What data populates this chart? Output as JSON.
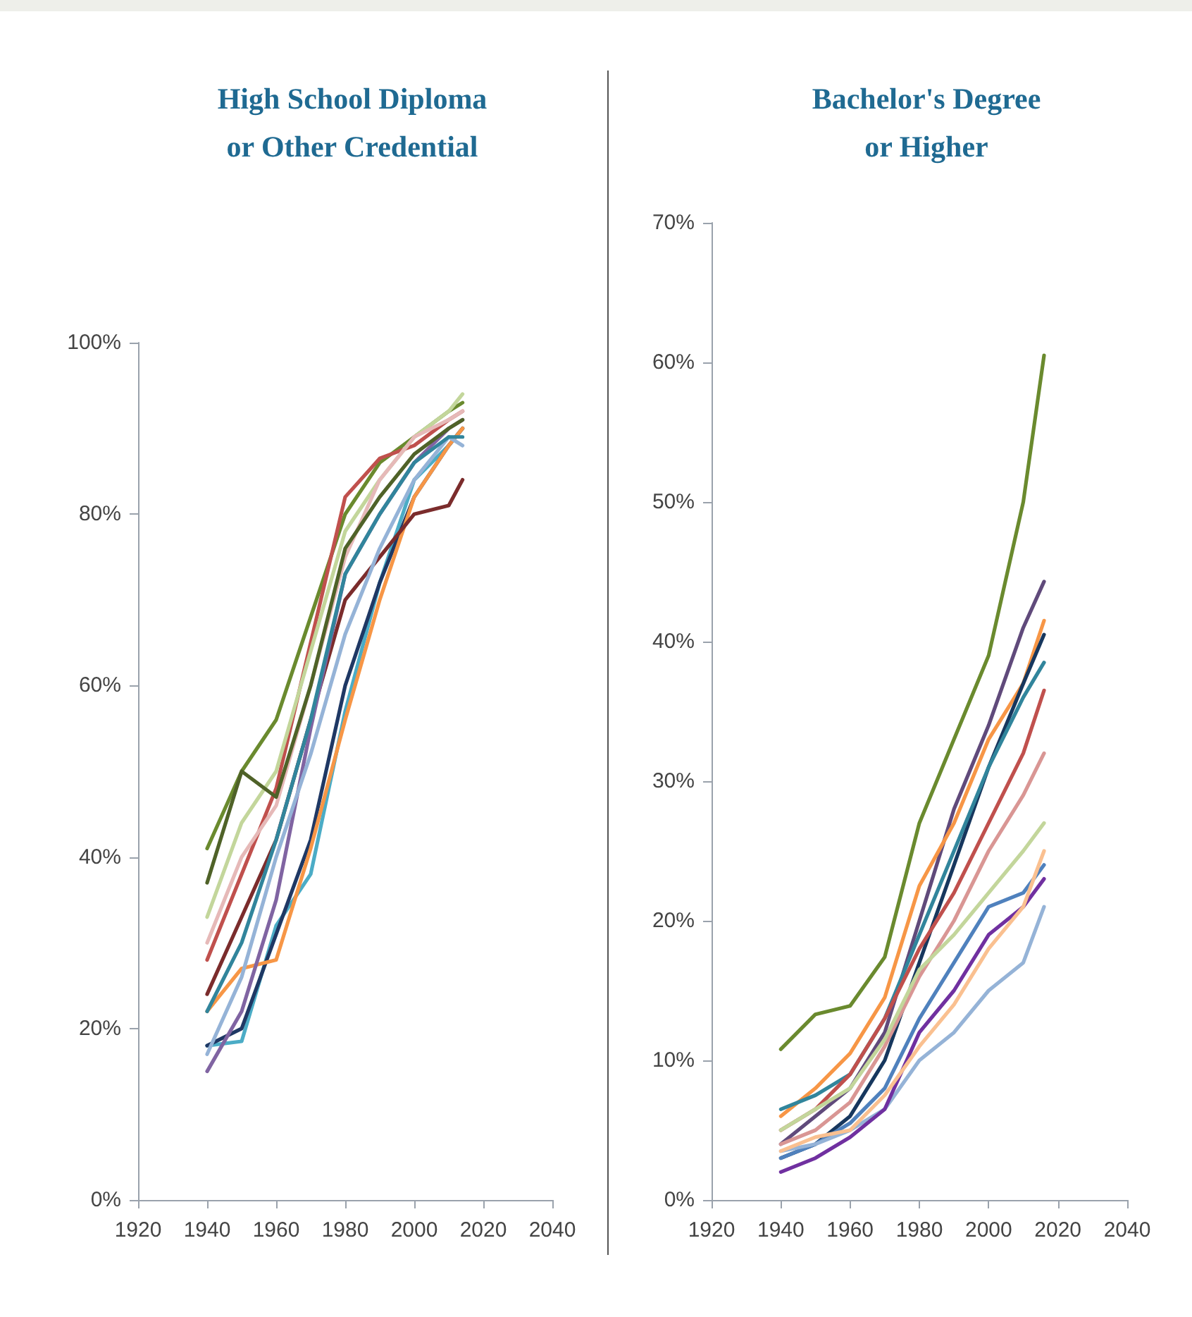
{
  "chart_data": [
    {
      "type": "line",
      "title": "High School Diploma\nor Other Credential",
      "x": [
        1940,
        1950,
        1960,
        1970,
        1980,
        1990,
        2000,
        2010,
        2014
      ],
      "series": [
        {
          "color": "#6a8a2e",
          "values": [
            41,
            50,
            56,
            68,
            80,
            86,
            89,
            92,
            93
          ]
        },
        {
          "color": "#c0504d",
          "values": [
            28,
            38,
            48,
            65,
            82,
            86.5,
            88,
            91,
            92
          ]
        },
        {
          "color": "#4bacc6",
          "values": [
            18,
            18.5,
            32,
            38,
            57,
            72,
            84,
            88,
            90
          ]
        },
        {
          "color": "#1f3864",
          "values": [
            18,
            20,
            31,
            42,
            60,
            72,
            82,
            88,
            90
          ]
        },
        {
          "color": "#f79646",
          "values": [
            22,
            27,
            28,
            41,
            56,
            70,
            82,
            88,
            90
          ]
        },
        {
          "color": "#7b2c2c",
          "values": [
            24,
            33,
            42,
            56,
            70,
            75,
            80,
            81,
            84
          ]
        },
        {
          "color": "#8064a2",
          "values": [
            15,
            22,
            35,
            55,
            73,
            80,
            86,
            90,
            91
          ]
        },
        {
          "color": "#c3d69b",
          "values": [
            33,
            44,
            50,
            64,
            78,
            84,
            89,
            92,
            94
          ]
        },
        {
          "color": "#95b3d7",
          "values": [
            17,
            26,
            40,
            52,
            66,
            76,
            84,
            89,
            88
          ]
        },
        {
          "color": "#31859c",
          "values": [
            22,
            30,
            42,
            56,
            73,
            80,
            86,
            89,
            89
          ]
        },
        {
          "color": "#e6b9b8",
          "values": [
            30,
            40,
            46,
            60,
            75,
            84,
            89,
            91,
            92
          ]
        },
        {
          "color": "#4f6228",
          "values": [
            37,
            50,
            47,
            60,
            76,
            82,
            87,
            90,
            91
          ]
        }
      ],
      "xlim": [
        1920,
        2040
      ],
      "xticks": [
        1920,
        1940,
        1960,
        1980,
        2000,
        2020,
        2040
      ],
      "ylim": [
        0,
        100
      ],
      "yticks": [
        {
          "value": 0,
          "label": "0%"
        },
        {
          "value": 20,
          "label": "20%"
        },
        {
          "value": 40,
          "label": "40%"
        },
        {
          "value": 60,
          "label": "60%"
        },
        {
          "value": 80,
          "label": "80%"
        },
        {
          "value": 100,
          "label": "100%"
        }
      ],
      "grid": false
    },
    {
      "type": "line",
      "title": "Bachelor's Degree\nor Higher",
      "x": [
        1940,
        1950,
        1960,
        1970,
        1980,
        1990,
        2000,
        2010,
        2016
      ],
      "series": [
        {
          "color": "#6a8a2e",
          "values": [
            10.8,
            13.3,
            13.9,
            17.4,
            27,
            33,
            39,
            50,
            60.5
          ]
        },
        {
          "color": "#604a7b",
          "values": [
            4,
            6,
            8,
            12,
            20,
            28,
            34,
            41,
            44.3
          ]
        },
        {
          "color": "#f79646",
          "values": [
            6,
            8,
            10.5,
            14.5,
            22.5,
            27,
            33,
            37,
            41.5
          ]
        },
        {
          "color": "#17375e",
          "values": [
            3,
            4,
            6,
            10,
            17,
            24,
            31,
            37,
            40.5
          ]
        },
        {
          "color": "#31859c",
          "values": [
            6.5,
            7.5,
            9,
            13,
            19,
            25,
            31,
            36,
            38.5
          ]
        },
        {
          "color": "#c0504d",
          "values": [
            5,
            6.5,
            9,
            13,
            18,
            22,
            27,
            32,
            36.5
          ]
        },
        {
          "color": "#d99694",
          "values": [
            4,
            5,
            7,
            11,
            16,
            20,
            25,
            29,
            32
          ]
        },
        {
          "color": "#c3d69b",
          "values": [
            5,
            6.5,
            8,
            11.5,
            16.5,
            19,
            22,
            25,
            27
          ]
        },
        {
          "color": "#4f81bd",
          "values": [
            3,
            4,
            5.5,
            8,
            13,
            17,
            21,
            22,
            24
          ]
        },
        {
          "color": "#95b3d7",
          "values": [
            3.5,
            4,
            5,
            6.5,
            10,
            12,
            15,
            17,
            21
          ]
        },
        {
          "color": "#7030a0",
          "values": [
            2,
            3,
            4.5,
            6.5,
            12,
            15,
            19,
            21,
            23
          ]
        },
        {
          "color": "#fac090",
          "values": [
            3.5,
            4.5,
            5,
            7.5,
            11,
            14,
            18,
            21,
            25
          ]
        }
      ],
      "xlim": [
        1920,
        2040
      ],
      "xticks": [
        1920,
        1940,
        1960,
        1980,
        2000,
        2020,
        2040
      ],
      "ylim": [
        0,
        70
      ],
      "yticks": [
        {
          "value": 0,
          "label": "0%"
        },
        {
          "value": 10,
          "label": "10%"
        },
        {
          "value": 20,
          "label": "20%"
        },
        {
          "value": 30,
          "label": "30%"
        },
        {
          "value": 40,
          "label": "40%"
        },
        {
          "value": 50,
          "label": "50%"
        },
        {
          "value": 60,
          "label": "60%"
        },
        {
          "value": 70,
          "label": "70%"
        }
      ],
      "grid": false
    }
  ]
}
